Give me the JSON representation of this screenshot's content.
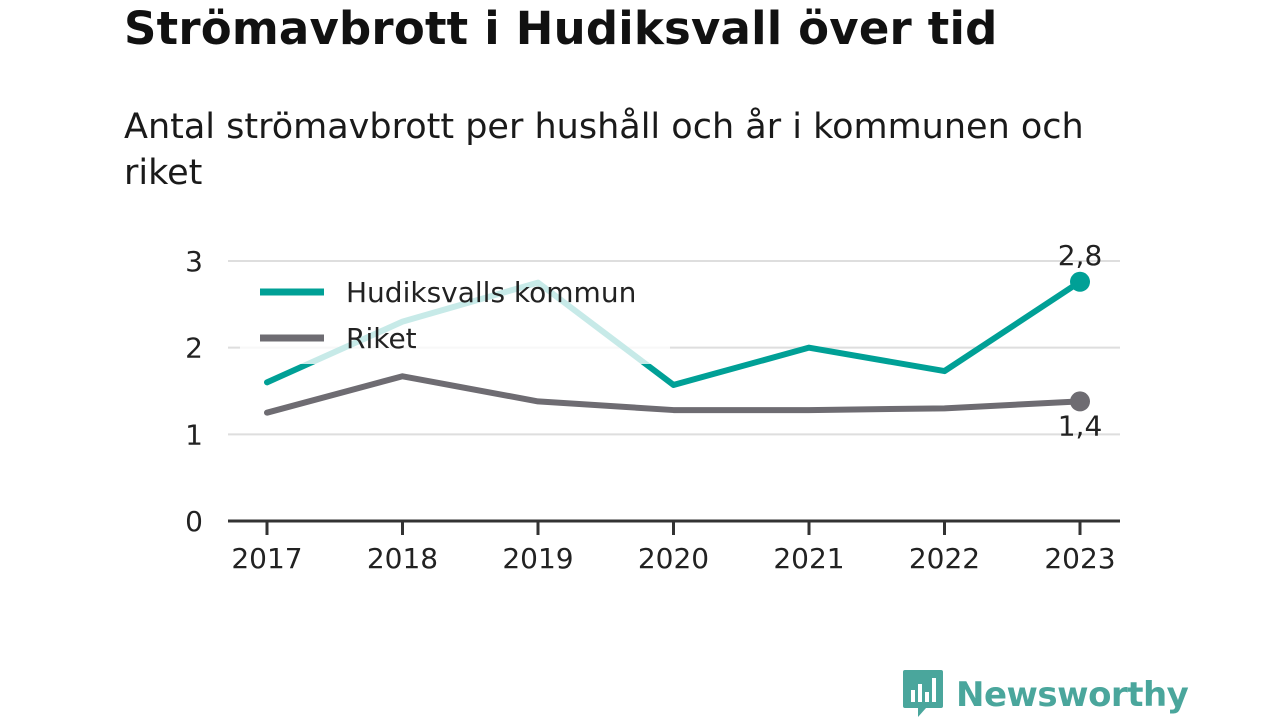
{
  "header": {
    "title": "Strömavbrott i Hudiksvall över tid",
    "subtitle": "Antal strömavbrott per hushåll och år i kommunen och riket"
  },
  "chart_data": {
    "type": "line",
    "title": "Strömavbrott i Hudiksvall över tid",
    "subtitle": "Antal strömavbrott per hushåll och år i kommunen och riket",
    "x": [
      "2017",
      "2018",
      "2019",
      "2020",
      "2021",
      "2022",
      "2023"
    ],
    "ylim": [
      0,
      3
    ],
    "yticks": [
      0,
      1,
      2,
      3
    ],
    "grid": true,
    "legend_position": "top-left",
    "series": [
      {
        "name": "Hudiksvalls kommun",
        "color": "#00a096",
        "values": [
          1.6,
          2.3,
          2.75,
          1.57,
          2.0,
          1.73,
          2.76
        ],
        "end_label": "2,8"
      },
      {
        "name": "Riket",
        "color": "#6e6c72",
        "values": [
          1.25,
          1.67,
          1.38,
          1.28,
          1.28,
          1.3,
          1.38
        ],
        "end_label": "1,4"
      }
    ]
  },
  "footer": {
    "brand": "Newsworthy",
    "brand_icon": "newsworthy-logo-icon"
  }
}
